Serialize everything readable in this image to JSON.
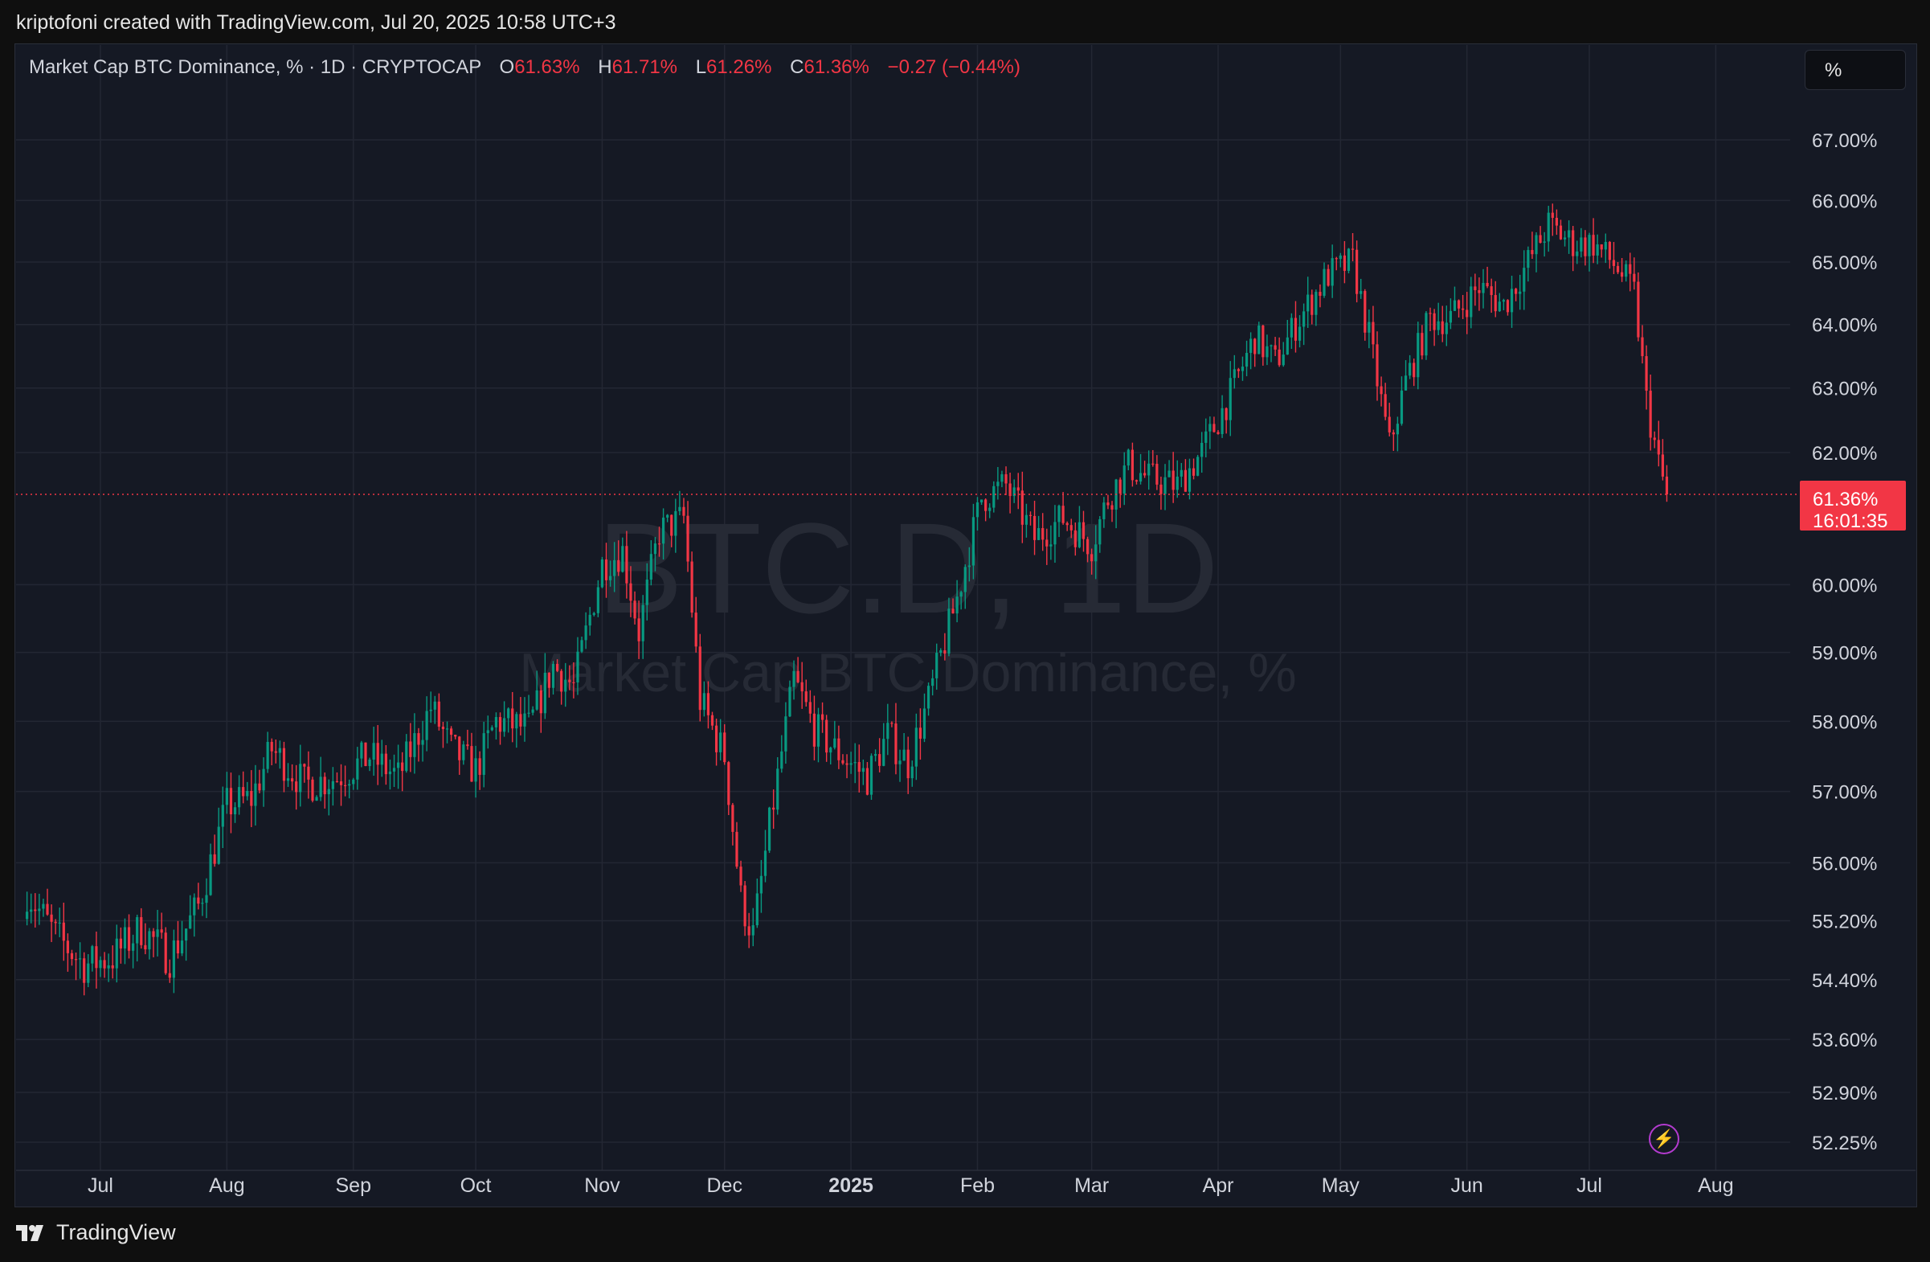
{
  "header": {
    "attribution": "kriptofoni created with TradingView.com, Jul 20, 2025 10:58 UTC+3"
  },
  "legend": {
    "symbol": "Market Cap BTC Dominance, % · 1D · CRYPTOCAP",
    "o_label": "O",
    "o_value": "61.63%",
    "h_label": "H",
    "h_value": "61.71%",
    "l_label": "L",
    "l_value": "61.26%",
    "c_label": "C",
    "c_value": "61.36%",
    "change": "−0.27 (−0.44%)"
  },
  "scale_button": {
    "label": "%"
  },
  "watermark": {
    "line1": "BTC.D, 1D",
    "line2": "Market Cap BTC Dominance, %"
  },
  "price_label": {
    "value": "61.36%",
    "countdown": "16:01:35"
  },
  "footer": {
    "brand": "TradingView"
  },
  "colors": {
    "up": "#089981",
    "down": "#f23645",
    "background": "#151924",
    "grid": "#232733",
    "text": "#d1d4dc"
  },
  "icons": {
    "bolt": "lightning-icon",
    "logo": "tradingview-logo-icon"
  },
  "chart_data": {
    "type": "candlestick",
    "title": "Market Cap BTC Dominance, %",
    "timeframe": "1D",
    "exchange": "CRYPTOCAP",
    "x_ticks": [
      {
        "label": "Jul",
        "bold": false
      },
      {
        "label": "Aug",
        "bold": false
      },
      {
        "label": "Sep",
        "bold": false
      },
      {
        "label": "Oct",
        "bold": false
      },
      {
        "label": "Nov",
        "bold": false
      },
      {
        "label": "Dec",
        "bold": false
      },
      {
        "label": "2025",
        "bold": true
      },
      {
        "label": "Feb",
        "bold": false
      },
      {
        "label": "Mar",
        "bold": false
      },
      {
        "label": "Apr",
        "bold": false
      },
      {
        "label": "May",
        "bold": false
      },
      {
        "label": "Jun",
        "bold": false
      },
      {
        "label": "Jul",
        "bold": false
      },
      {
        "label": "Aug",
        "bold": false
      }
    ],
    "y_ticks": [
      {
        "value": 67.0,
        "label": "67.00%"
      },
      {
        "value": 66.0,
        "label": "66.00%"
      },
      {
        "value": 65.0,
        "label": "65.00%"
      },
      {
        "value": 64.0,
        "label": "64.00%"
      },
      {
        "value": 63.0,
        "label": "63.00%"
      },
      {
        "value": 62.0,
        "label": "62.00%"
      },
      {
        "value": 60.0,
        "label": "60.00%"
      },
      {
        "value": 59.0,
        "label": "59.00%"
      },
      {
        "value": 58.0,
        "label": "58.00%"
      },
      {
        "value": 57.0,
        "label": "57.00%"
      },
      {
        "value": 56.0,
        "label": "56.00%"
      },
      {
        "value": 55.2,
        "label": "55.20%"
      },
      {
        "value": 54.4,
        "label": "54.40%"
      },
      {
        "value": 53.6,
        "label": "53.60%"
      },
      {
        "value": 52.9,
        "label": "52.90%"
      },
      {
        "value": 52.25,
        "label": "52.25%"
      }
    ],
    "y_scale": "log",
    "y_range": [
      52.1,
      67.8
    ],
    "last_price": 61.36,
    "anchors": [
      {
        "date": "2024-06-13",
        "close": 55.6
      },
      {
        "date": "2024-06-20",
        "close": 55.0
      },
      {
        "date": "2024-06-27",
        "close": 54.6
      },
      {
        "date": "2024-07-04",
        "close": 54.7
      },
      {
        "date": "2024-07-11",
        "close": 55.1
      },
      {
        "date": "2024-07-18",
        "close": 54.7
      },
      {
        "date": "2024-07-25",
        "close": 55.4
      },
      {
        "date": "2024-08-01",
        "close": 56.8
      },
      {
        "date": "2024-08-07",
        "close": 56.9
      },
      {
        "date": "2024-08-12",
        "close": 57.6
      },
      {
        "date": "2024-08-20",
        "close": 57.1
      },
      {
        "date": "2024-08-28",
        "close": 57.2
      },
      {
        "date": "2024-09-05",
        "close": 57.5
      },
      {
        "date": "2024-09-12",
        "close": 57.2
      },
      {
        "date": "2024-09-20",
        "close": 58.2
      },
      {
        "date": "2024-09-25",
        "close": 57.6
      },
      {
        "date": "2024-10-01",
        "close": 57.3
      },
      {
        "date": "2024-10-06",
        "close": 58.0
      },
      {
        "date": "2024-10-14",
        "close": 57.9
      },
      {
        "date": "2024-10-20",
        "close": 58.8
      },
      {
        "date": "2024-10-25",
        "close": 58.5
      },
      {
        "date": "2024-11-01",
        "close": 60.3
      },
      {
        "date": "2024-11-06",
        "close": 60.5
      },
      {
        "date": "2024-11-10",
        "close": 59.3
      },
      {
        "date": "2024-11-15",
        "close": 60.8
      },
      {
        "date": "2024-11-21",
        "close": 61.0
      },
      {
        "date": "2024-11-25",
        "close": 58.3
      },
      {
        "date": "2024-12-01",
        "close": 57.5
      },
      {
        "date": "2024-12-05",
        "close": 55.5
      },
      {
        "date": "2024-12-08",
        "close": 55.0
      },
      {
        "date": "2024-12-12",
        "close": 56.5
      },
      {
        "date": "2024-12-18",
        "close": 58.6
      },
      {
        "date": "2024-12-23",
        "close": 57.9
      },
      {
        "date": "2024-12-28",
        "close": 57.6
      },
      {
        "date": "2025-01-05",
        "close": 57.2
      },
      {
        "date": "2025-01-10",
        "close": 57.8
      },
      {
        "date": "2025-01-15",
        "close": 57.4
      },
      {
        "date": "2025-01-20",
        "close": 58.3
      },
      {
        "date": "2025-01-27",
        "close": 59.8
      },
      {
        "date": "2025-02-02",
        "close": 61.3
      },
      {
        "date": "2025-02-08",
        "close": 61.5
      },
      {
        "date": "2025-02-15",
        "close": 60.7
      },
      {
        "date": "2025-02-22",
        "close": 61.0
      },
      {
        "date": "2025-03-01",
        "close": 60.6
      },
      {
        "date": "2025-03-05",
        "close": 61.3
      },
      {
        "date": "2025-03-10",
        "close": 61.8
      },
      {
        "date": "2025-03-15",
        "close": 61.6
      },
      {
        "date": "2025-03-22",
        "close": 61.5
      },
      {
        "date": "2025-03-28",
        "close": 62.0
      },
      {
        "date": "2025-04-04",
        "close": 62.9
      },
      {
        "date": "2025-04-10",
        "close": 63.8
      },
      {
        "date": "2025-04-15",
        "close": 63.4
      },
      {
        "date": "2025-04-20",
        "close": 64.0
      },
      {
        "date": "2025-04-28",
        "close": 64.8
      },
      {
        "date": "2025-05-04",
        "close": 65.0
      },
      {
        "date": "2025-05-08",
        "close": 63.8
      },
      {
        "date": "2025-05-13",
        "close": 62.1
      },
      {
        "date": "2025-05-17",
        "close": 63.1
      },
      {
        "date": "2025-05-23",
        "close": 64.1
      },
      {
        "date": "2025-05-28",
        "close": 64.1
      },
      {
        "date": "2025-06-04",
        "close": 64.6
      },
      {
        "date": "2025-06-10",
        "close": 64.3
      },
      {
        "date": "2025-06-16",
        "close": 65.0
      },
      {
        "date": "2025-06-21",
        "close": 65.6
      },
      {
        "date": "2025-06-27",
        "close": 65.3
      },
      {
        "date": "2025-07-02",
        "close": 65.3
      },
      {
        "date": "2025-07-08",
        "close": 64.9
      },
      {
        "date": "2025-07-12",
        "close": 64.5
      },
      {
        "date": "2025-07-15",
        "close": 62.8
      },
      {
        "date": "2025-07-18",
        "close": 61.8
      },
      {
        "date": "2025-07-20",
        "close": 61.36
      }
    ]
  }
}
